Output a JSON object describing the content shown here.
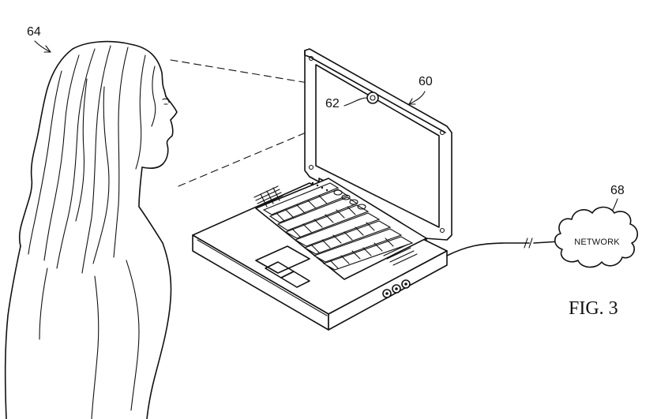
{
  "figure": {
    "caption": "FIG. 3",
    "labels": {
      "user": "64",
      "laptop": "60",
      "camera": "62",
      "network": "68"
    },
    "network_text": "NETWORK"
  },
  "colors": {
    "ink": "#111111",
    "paper": "#ffffff"
  }
}
